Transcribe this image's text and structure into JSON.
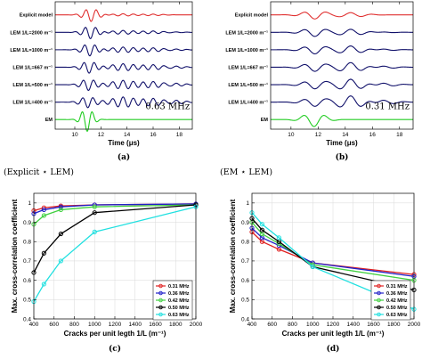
{
  "chart_data": [
    {
      "id": "a",
      "type": "line",
      "panel_label": "(a)",
      "xlabel": "Time (μs)",
      "xlim": [
        8.5,
        19
      ],
      "xticks": [
        "10",
        "12",
        "14",
        "16",
        "18"
      ],
      "annotation": "0.63 MHz",
      "traces": [
        {
          "name": "Explicit model",
          "color": "#e03030"
        },
        {
          "name": "LEM 1/L=2000 m⁻¹",
          "color": "#10106a"
        },
        {
          "name": "LEM 1/L=1000 m⁻¹",
          "color": "#10106a"
        },
        {
          "name": "LEM 1/L=667 m⁻¹",
          "color": "#10106a"
        },
        {
          "name": "LEM 1/L=500 m⁻¹",
          "color": "#10106a"
        },
        {
          "name": "LEM 1/L=400 m⁻¹",
          "color": "#10106a"
        },
        {
          "name": "EM",
          "color": "#22cc22"
        }
      ]
    },
    {
      "id": "b",
      "type": "line",
      "panel_label": "(b)",
      "xlabel": "Time (μs)",
      "xlim": [
        8.5,
        19
      ],
      "xticks": [
        "10",
        "12",
        "14",
        "16",
        "18"
      ],
      "annotation": "0.31 MHz",
      "traces": [
        {
          "name": "Explicit model",
          "color": "#e03030"
        },
        {
          "name": "LEM 1/L=2000 m⁻¹",
          "color": "#10106a"
        },
        {
          "name": "LEM 1/L=1000 m⁻¹",
          "color": "#10106a"
        },
        {
          "name": "LEM 1/L=667 m⁻¹",
          "color": "#10106a"
        },
        {
          "name": "LEM 1/L=500 m⁻¹",
          "color": "#10106a"
        },
        {
          "name": "LEM 1/L=400 m⁻¹",
          "color": "#10106a"
        },
        {
          "name": "EM",
          "color": "#22cc22"
        }
      ]
    },
    {
      "id": "c",
      "type": "line",
      "panel_label": "(c)",
      "title": "(Explicit ⋆ LEM)",
      "xlabel": "Cracks per unit legth 1/L (m⁻¹)",
      "ylabel": "Max. cross-correlation coefficient",
      "x": [
        400,
        500,
        667,
        1000,
        2000
      ],
      "xlim": [
        400,
        2000
      ],
      "ylim": [
        0.4,
        1.05
      ],
      "xticks": [
        400,
        600,
        800,
        1000,
        1200,
        1400,
        1600,
        1800,
        2000
      ],
      "yticks": [
        0.4,
        0.5,
        0.6,
        0.7,
        0.8,
        0.9,
        1
      ],
      "legend_position": "bottom-right",
      "series": [
        {
          "name": "0.31 MHz",
          "color": "#e02020",
          "values": [
            0.96,
            0.975,
            0.985,
            0.99,
            0.995
          ]
        },
        {
          "name": "0.36 MHz",
          "color": "#2020c8",
          "values": [
            0.945,
            0.965,
            0.98,
            0.99,
            0.995
          ]
        },
        {
          "name": "0.42 MHz",
          "color": "#40d040",
          "values": [
            0.89,
            0.935,
            0.965,
            0.98,
            0.99
          ]
        },
        {
          "name": "0.50 MHz",
          "color": "#000000",
          "values": [
            0.64,
            0.74,
            0.84,
            0.95,
            0.99
          ]
        },
        {
          "name": "0.63 MHz",
          "color": "#20e0e0",
          "values": [
            0.49,
            0.58,
            0.7,
            0.85,
            0.98
          ]
        }
      ]
    },
    {
      "id": "d",
      "type": "line",
      "panel_label": "(d)",
      "title": "(EM ⋆ LEM)",
      "xlabel": "Cracks per unit legth 1/L (m⁻¹)",
      "ylabel": "Max. cross-correlation coefficient",
      "x": [
        400,
        500,
        667,
        1000,
        2000
      ],
      "xlim": [
        400,
        2000
      ],
      "ylim": [
        0.4,
        1.05
      ],
      "xticks": [
        400,
        600,
        800,
        1000,
        1200,
        1400,
        1600,
        1800,
        2000
      ],
      "yticks": [
        0.4,
        0.5,
        0.6,
        0.7,
        0.8,
        0.9,
        1
      ],
      "legend_position": "bottom-right",
      "series": [
        {
          "name": "0.31 MHz",
          "color": "#e02020",
          "values": [
            0.85,
            0.8,
            0.76,
            0.69,
            0.63
          ]
        },
        {
          "name": "0.36 MHz",
          "color": "#2020c8",
          "values": [
            0.87,
            0.82,
            0.78,
            0.69,
            0.62
          ]
        },
        {
          "name": "0.42 MHz",
          "color": "#40d040",
          "values": [
            0.9,
            0.84,
            0.79,
            0.68,
            0.6
          ]
        },
        {
          "name": "0.50 MHz",
          "color": "#000000",
          "values": [
            0.92,
            0.86,
            0.8,
            0.67,
            0.55
          ]
        },
        {
          "name": "0.63 MHz",
          "color": "#20e0e0",
          "values": [
            0.95,
            0.89,
            0.82,
            0.67,
            0.45
          ]
        }
      ]
    }
  ]
}
